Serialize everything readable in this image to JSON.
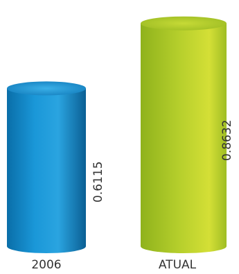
{
  "chart_data": {
    "type": "bar",
    "categories": [
      "2006",
      "ATUAL"
    ],
    "values": [
      0.6115,
      0.8632
    ],
    "value_labels": [
      "0.6115",
      "0.8632"
    ],
    "title": "",
    "xlabel": "",
    "ylabel": "",
    "ylim": [
      0,
      0.9
    ],
    "grid": false,
    "bar_style": "3d-cylinder",
    "colors": [
      "#1a8fd0",
      "#a8c52a"
    ]
  }
}
